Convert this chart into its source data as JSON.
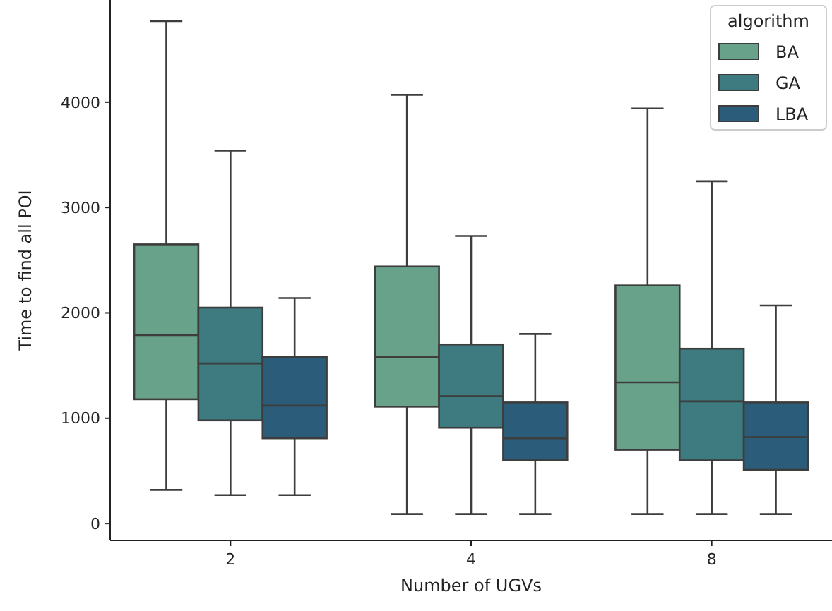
{
  "chart_data": {
    "type": "box",
    "xlabel": "Number of UGVs",
    "ylabel": "Time to find all POI",
    "legend_title": "algorithm",
    "legend": "top right",
    "categories": [
      "2",
      "4",
      "8"
    ],
    "ylim": [
      -160,
      4970
    ],
    "yticks": [
      0,
      1000,
      2000,
      3000,
      4000
    ],
    "grid": false,
    "series": [
      {
        "name": "BA",
        "color": "#68a28b",
        "boxes": [
          {
            "low": 320,
            "q1": 1180,
            "median": 1790,
            "q3": 2650,
            "high": 4770
          },
          {
            "low": 90,
            "q1": 1110,
            "median": 1580,
            "q3": 2440,
            "high": 4070
          },
          {
            "low": 90,
            "q1": 700,
            "median": 1340,
            "q3": 2260,
            "high": 3940
          }
        ]
      },
      {
        "name": "GA",
        "color": "#3d7b80",
        "boxes": [
          {
            "low": 270,
            "q1": 980,
            "median": 1520,
            "q3": 2050,
            "high": 3540
          },
          {
            "low": 90,
            "q1": 910,
            "median": 1210,
            "q3": 1700,
            "high": 2730
          },
          {
            "low": 90,
            "q1": 600,
            "median": 1160,
            "q3": 1660,
            "high": 3250
          }
        ]
      },
      {
        "name": "LBA",
        "color": "#2b5c7a",
        "boxes": [
          {
            "low": 270,
            "q1": 810,
            "median": 1120,
            "q3": 1580,
            "high": 2140
          },
          {
            "low": 90,
            "q1": 600,
            "median": 810,
            "q3": 1150,
            "high": 1800
          },
          {
            "low": 90,
            "q1": 510,
            "median": 820,
            "q3": 1150,
            "high": 2070
          }
        ]
      }
    ]
  }
}
